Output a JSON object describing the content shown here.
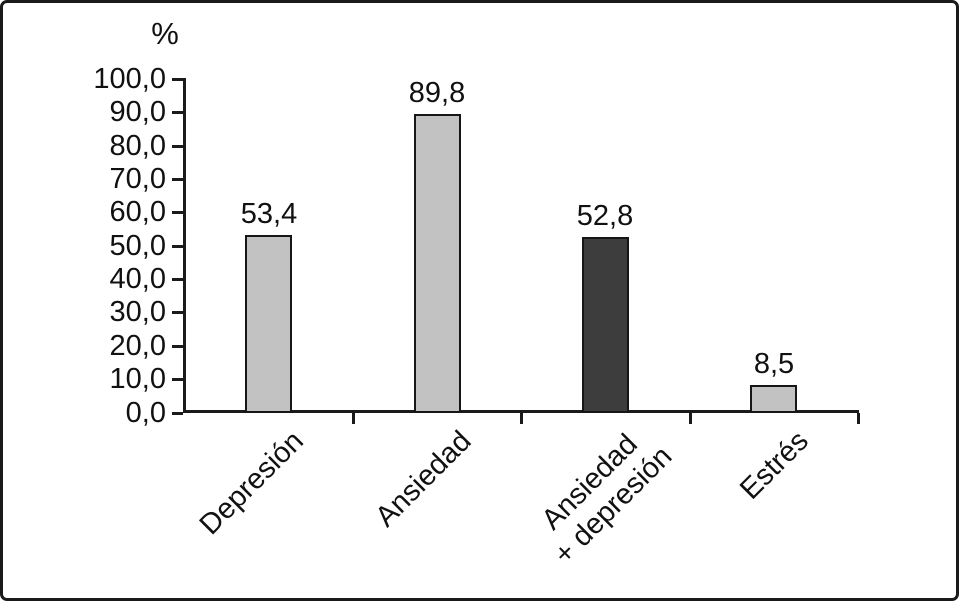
{
  "chart_data": {
    "type": "bar",
    "title": "",
    "xlabel": "",
    "ylabel": "%",
    "categories": [
      "Depresión",
      "Ansiedad",
      "Ansiedad\n+ depresión",
      "Estrés"
    ],
    "values": [
      53.4,
      89.8,
      52.8,
      8.5
    ],
    "value_labels": [
      "53,4",
      "89,8",
      "52,8",
      "8,5"
    ],
    "y_ticks": [
      "100,0",
      "90,0",
      "80,0",
      "70,0",
      "60,0",
      "50,0",
      "40,0",
      "30,0",
      "20,0",
      "10,0",
      "0,0"
    ],
    "ylim": [
      0,
      100
    ],
    "grid": false,
    "legend_position": "none",
    "bar_colors": [
      "#c2c2c2",
      "#c2c2c2",
      "#3d3d3d",
      "#c2c2c2"
    ],
    "bar_border_color": "#161616",
    "axis_color": "#1a1a1a",
    "frame_color": "#1a1a1a",
    "background_color": "#ffffff"
  }
}
